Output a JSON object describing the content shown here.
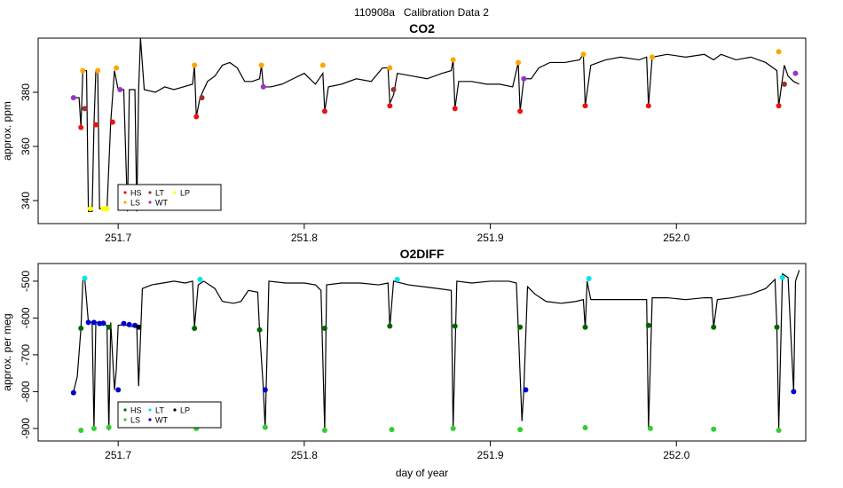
{
  "title": "110908a   Calibration Data 2",
  "chart_data": [
    {
      "type": "line",
      "title": "CO2",
      "y_label": "approx. ppm",
      "xlim": [
        251.657,
        252.0695
      ],
      "ylim": [
        331.5,
        400
      ],
      "xticks": [
        251.7,
        251.8,
        251.9,
        {
          "value": 252,
          "label": "252.0"
        }
      ],
      "yticks": [
        340,
        360,
        380
      ],
      "legend_position": "bottom-left",
      "line": {
        "color": "#000000",
        "x": [
          251.676,
          251.679,
          251.68,
          251.681,
          251.683,
          251.684,
          251.686,
          251.687,
          251.688,
          251.689,
          251.69,
          251.694,
          251.696,
          251.698,
          251.7,
          251.703,
          251.705,
          251.706,
          251.709,
          251.71,
          251.711,
          251.712,
          251.714,
          251.72,
          251.725,
          251.73,
          251.735,
          251.74,
          251.741,
          251.742,
          251.744,
          251.748,
          251.752,
          251.756,
          251.76,
          251.764,
          251.768,
          251.772,
          251.776,
          251.777,
          251.778,
          251.782,
          251.788,
          251.794,
          251.8,
          251.806,
          251.81,
          251.811,
          251.813,
          251.82,
          251.828,
          251.836,
          251.842,
          251.845,
          251.846,
          251.848,
          251.85,
          251.858,
          251.866,
          251.874,
          251.879,
          251.88,
          251.881,
          251.883,
          251.89,
          251.898,
          251.905,
          251.912,
          251.915,
          251.916,
          251.918,
          251.922,
          251.926,
          251.932,
          251.94,
          251.948,
          251.95,
          251.951,
          251.954,
          251.962,
          251.97,
          251.98,
          251.984,
          251.985,
          251.987,
          251.995,
          252.005,
          252.015,
          252.02,
          252.024,
          252.032,
          252.04,
          252.048,
          252.054,
          252.055,
          252.058,
          252.06,
          252.063,
          252.066
        ],
        "values": [
          378,
          378,
          367,
          388,
          388,
          336,
          336,
          368,
          388,
          388,
          337,
          337,
          369,
          388,
          381,
          381,
          336,
          381,
          381,
          336,
          381,
          400,
          381,
          380,
          382,
          381,
          382,
          383,
          390,
          371,
          378,
          384,
          386,
          390,
          391,
          389,
          384,
          384,
          385,
          390,
          382,
          382,
          383,
          385,
          387,
          383,
          387,
          373,
          382,
          383,
          385,
          384,
          389,
          389,
          376,
          379,
          387,
          386,
          385,
          387,
          388,
          392,
          374,
          384,
          384,
          383,
          383,
          382,
          391,
          373,
          385,
          385,
          389,
          391,
          391,
          392,
          394,
          375,
          390,
          392,
          393,
          392,
          393,
          375,
          393,
          394,
          393,
          394,
          392,
          394,
          392,
          393,
          391,
          388,
          375,
          390,
          386,
          384,
          383
        ]
      },
      "series": [
        {
          "name": "HS",
          "color": "#ee1111",
          "x": [
            251.68,
            251.688,
            251.697,
            251.742,
            251.811,
            251.846,
            251.881,
            251.916,
            251.951,
            251.985,
            252.055
          ],
          "values": [
            367,
            368,
            369,
            371,
            373,
            375,
            374,
            373,
            375,
            375,
            375
          ]
        },
        {
          "name": "LS",
          "color": "#ffa500",
          "x": [
            251.681,
            251.689,
            251.699,
            251.741,
            251.777,
            251.81,
            251.846,
            251.88,
            251.915,
            251.95,
            251.987,
            252.055
          ],
          "values": [
            388,
            388,
            389,
            390,
            390,
            390,
            389,
            392,
            391,
            394,
            393,
            395
          ]
        },
        {
          "name": "LT",
          "color": "#a0302a",
          "x": [
            251.682,
            251.745,
            251.848,
            252.058
          ],
          "values": [
            374,
            378,
            381,
            383
          ]
        },
        {
          "name": "WT",
          "color": "#9932cc",
          "x": [
            251.676,
            251.701,
            251.778,
            251.918,
            252.064
          ],
          "values": [
            378,
            381,
            382,
            385,
            387
          ]
        },
        {
          "name": "LP",
          "color": "#ffff00",
          "x": [
            251.685,
            251.692,
            251.694
          ],
          "values": [
            337,
            337,
            337
          ]
        }
      ]
    },
    {
      "type": "line",
      "title": "O2DIFF",
      "y_label": "approx. per meg",
      "x_label": "day of year",
      "xlim": [
        251.657,
        252.0695
      ],
      "ylim": [
        -934,
        -452
      ],
      "xticks": [
        251.7,
        251.8,
        251.9,
        {
          "value": 252,
          "label": "252.0"
        }
      ],
      "yticks": [
        -900,
        -800,
        -700,
        -600,
        -500
      ],
      "legend_position": "bottom-left",
      "line": {
        "color": "#000000",
        "x": [
          251.676,
          251.678,
          251.68,
          251.681,
          251.682,
          251.684,
          251.686,
          251.687,
          251.688,
          251.692,
          251.694,
          251.695,
          251.696,
          251.698,
          251.699,
          251.7,
          251.703,
          251.706,
          251.71,
          251.711,
          251.713,
          251.718,
          251.724,
          251.73,
          251.736,
          251.74,
          251.741,
          251.743,
          251.746,
          251.752,
          251.756,
          251.762,
          251.766,
          251.77,
          251.775,
          251.776,
          251.778,
          251.779,
          251.781,
          251.79,
          251.8,
          251.806,
          251.809,
          251.811,
          251.812,
          251.82,
          251.83,
          251.84,
          251.845,
          251.846,
          251.848,
          251.856,
          251.864,
          251.872,
          251.879,
          251.88,
          251.882,
          251.89,
          251.9,
          251.91,
          251.914,
          251.915,
          251.917,
          251.918,
          251.92,
          251.924,
          251.93,
          251.938,
          251.946,
          251.95,
          251.951,
          251.952,
          251.954,
          251.962,
          251.97,
          251.98,
          251.984,
          251.985,
          251.987,
          251.995,
          252.005,
          252.015,
          252.019,
          252.02,
          252.022,
          252.03,
          252.04,
          252.048,
          252.053,
          252.054,
          252.055,
          252.057,
          252.06,
          252.063,
          252.064,
          252.066
        ],
        "values": [
          -800,
          -760,
          -628,
          -500,
          -490,
          -612,
          -612,
          -900,
          -612,
          -612,
          -622,
          -905,
          -612,
          -795,
          -740,
          -620,
          -618,
          -622,
          -625,
          -785,
          -520,
          -510,
          -505,
          -500,
          -505,
          -500,
          -625,
          -510,
          -500,
          -520,
          -555,
          -560,
          -555,
          -525,
          -530,
          -635,
          -790,
          -900,
          -500,
          -505,
          -505,
          -510,
          -525,
          -905,
          -510,
          -505,
          -505,
          -510,
          -505,
          -625,
          -500,
          -510,
          -515,
          -520,
          -525,
          -900,
          -500,
          -505,
          -500,
          -500,
          -505,
          -625,
          -880,
          -795,
          -515,
          -535,
          -555,
          -560,
          -555,
          -550,
          -630,
          -500,
          -550,
          -550,
          -550,
          -550,
          -550,
          -900,
          -545,
          -545,
          -550,
          -545,
          -545,
          -625,
          -550,
          -545,
          -535,
          -520,
          -495,
          -625,
          -900,
          -480,
          -490,
          -800,
          -500,
          -470
        ]
      },
      "series": [
        {
          "name": "HS",
          "color": "#006400",
          "x": [
            251.68,
            251.695,
            251.741,
            251.776,
            251.811,
            251.846,
            251.881,
            251.916,
            251.951,
            251.985,
            252.02,
            252.054
          ],
          "values": [
            -628,
            -625,
            -628,
            -632,
            -628,
            -622,
            -622,
            -625,
            -625,
            -620,
            -625,
            -625
          ]
        },
        {
          "name": "LS",
          "color": "#32cd32",
          "x": [
            251.68,
            251.687,
            251.695,
            251.742,
            251.779,
            251.811,
            251.847,
            251.88,
            251.916,
            251.951,
            251.986,
            252.02,
            252.055
          ],
          "values": [
            -905,
            -900,
            -897,
            -900,
            -897,
            -905,
            -903,
            -900,
            -903,
            -898,
            -900,
            -902,
            -905
          ]
        },
        {
          "name": "LT",
          "color": "#00e5ee",
          "x": [
            251.682,
            251.744,
            251.85,
            251.953,
            252.057
          ],
          "values": [
            -492,
            -495,
            -495,
            -493,
            -490
          ]
        },
        {
          "name": "WT",
          "color": "#0000cd",
          "x": [
            251.676,
            251.684,
            251.687,
            251.69,
            251.692,
            251.7,
            251.703,
            251.706,
            251.709,
            251.779,
            251.919,
            252.063
          ],
          "values": [
            -803,
            -612,
            -612,
            -615,
            -614,
            -795,
            -615,
            -618,
            -620,
            -795,
            -795,
            -800
          ]
        },
        {
          "name": "LP",
          "color": "#000000",
          "x": [
            251.711
          ],
          "values": [
            -625
          ]
        }
      ]
    }
  ]
}
